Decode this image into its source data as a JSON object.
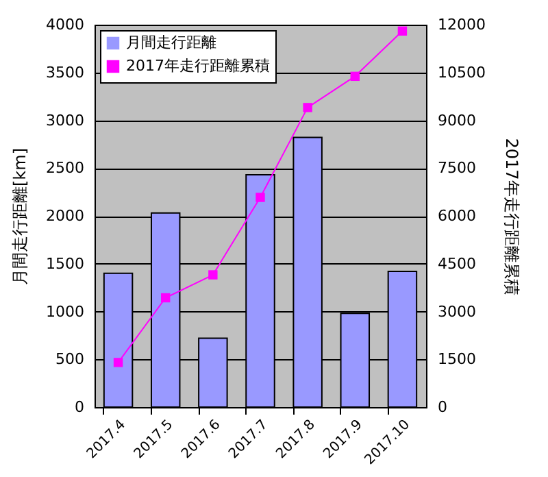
{
  "chart_data": {
    "type": "bar",
    "categories": [
      "2017.4",
      "2017.5",
      "2017.6",
      "2017.7",
      "2017.8",
      "2017.9",
      "2017.10"
    ],
    "series": [
      {
        "name": "月間走行距離",
        "color": "#9999ff",
        "values": [
          1400,
          2030,
          720,
          2430,
          2820,
          980,
          1420
        ]
      },
      {
        "name": "2017年走行距離累積",
        "type": "line",
        "axis": "y2",
        "color": "#ff00ff",
        "marker": "square",
        "values": [
          1400,
          3430,
          4150,
          6580,
          9400,
          10380,
          11800
        ]
      }
    ],
    "ylabel": "月間走行距離[km]",
    "y2label": "2017年走行距離累積",
    "ylim": [
      0,
      4000
    ],
    "yticks": [
      0,
      500,
      1000,
      1500,
      2000,
      2500,
      3000,
      3500,
      4000
    ],
    "y2lim": [
      0,
      12000
    ],
    "y2ticks": [
      0,
      1500,
      3000,
      4500,
      6000,
      7500,
      9000,
      10500,
      12000
    ],
    "grid": "y",
    "legend": "top left"
  }
}
